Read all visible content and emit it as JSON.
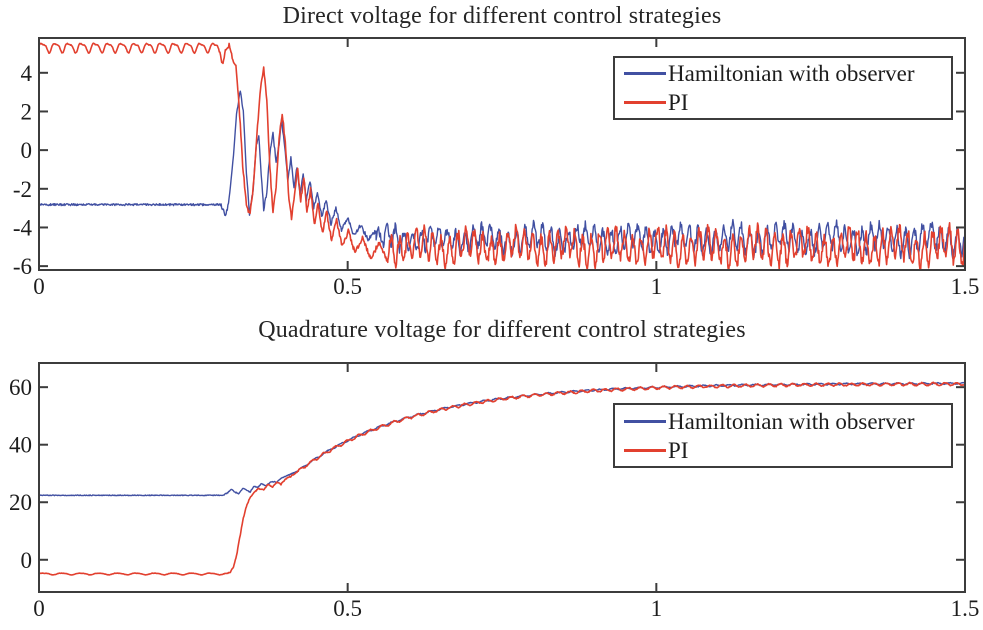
{
  "figure_background": "#ffffff",
  "colors": {
    "hamiltonian_blue": "#4150a2",
    "pi_red": "#e2402f",
    "axis": "#3c3c3c",
    "text": "#1d1d1d"
  },
  "chart_data": [
    {
      "type": "line",
      "title": "Direct voltage for different control strategies",
      "xlabel": "",
      "ylabel": "",
      "xlim": [
        0,
        1.5
      ],
      "ylim": [
        -6.2,
        5.8
      ],
      "xticks": [
        "0",
        "0.5",
        "1",
        "1.5"
      ],
      "xtick_values": [
        0,
        0.5,
        1,
        1.5
      ],
      "yticks": [
        "4",
        "2",
        "0",
        "-2",
        "-4",
        "-6"
      ],
      "ytick_values": [
        4,
        2,
        0,
        -2,
        -4,
        -6
      ],
      "grid": false,
      "legend_position": "inside upper right",
      "series": [
        {
          "name": "Hamiltonian with observer",
          "color": "#4150a2",
          "description": "flat at -2.8 until t=0.30, transient ringing peaking at +3.1 near t=0.33, decays into noisy band centered near -4.6",
          "segments": [
            {
              "type": "flat",
              "t": [
                0,
                0.296
              ],
              "value": -2.82,
              "noise": 0.05
            },
            {
              "type": "points",
              "noise": 0.1,
              "pts": [
                [
                  0.296,
                  -2.9
                ],
                [
                  0.302,
                  -3.4
                ],
                [
                  0.307,
                  -2.75
                ],
                [
                  0.313,
                  -1.0
                ],
                [
                  0.32,
                  1.8
                ],
                [
                  0.326,
                  3.1
                ],
                [
                  0.331,
                  2.0
                ],
                [
                  0.336,
                  -1.2
                ],
                [
                  0.341,
                  -3.3
                ],
                [
                  0.347,
                  -2.0
                ],
                [
                  0.352,
                  0.3
                ],
                [
                  0.356,
                  0.7
                ],
                [
                  0.36,
                  -1.2
                ],
                [
                  0.364,
                  -3.1
                ],
                [
                  0.369,
                  -2.2
                ],
                [
                  0.374,
                  -0.2
                ],
                [
                  0.379,
                  0.9
                ],
                [
                  0.384,
                  -0.6
                ],
                [
                  0.389,
                  0.3
                ],
                [
                  0.393,
                  1.6
                ],
                [
                  0.398,
                  0.2
                ],
                [
                  0.403,
                  -1.6
                ],
                [
                  0.408,
                  -0.4
                ],
                [
                  0.413,
                  -1.9
                ],
                [
                  0.418,
                  -0.9
                ],
                [
                  0.423,
                  -2.3
                ],
                [
                  0.428,
                  -1.2
                ],
                [
                  0.433,
                  -2.6
                ],
                [
                  0.439,
                  -1.6
                ],
                [
                  0.445,
                  -3.0
                ],
                [
                  0.451,
                  -2.2
                ],
                [
                  0.458,
                  -3.4
                ],
                [
                  0.465,
                  -2.6
                ],
                [
                  0.473,
                  -3.8
                ],
                [
                  0.481,
                  -3.0
                ],
                [
                  0.49,
                  -4.1
                ],
                [
                  0.5,
                  -3.5
                ],
                [
                  0.51,
                  -4.4
                ],
                [
                  0.521,
                  -3.9
                ],
                [
                  0.533,
                  -4.6
                ],
                [
                  0.546,
                  -4.2
                ]
              ]
            },
            {
              "type": "band",
              "t": [
                0.546,
                1.5
              ],
              "mean": -4.6,
              "a1": 0.5,
              "p1": 0.014,
              "a2": 0.2,
              "p2": 0.08,
              "jitter": 0.25,
              "grow": 0.25
            }
          ]
        },
        {
          "name": "PI",
          "color": "#e2402f",
          "description": "rippled flat near +5.3 until t=0.30, large transient peaking at +4.3 near t=0.36, decays into noisy band centered near -5.0",
          "segments": [
            {
              "type": "ripple",
              "t": [
                0,
                0.291
              ],
              "base": 5.32,
              "amp": 0.22,
              "period": 0.0214,
              "amp2": 0.08,
              "noise": 0.02
            },
            {
              "type": "points",
              "noise": 0.12,
              "pts": [
                [
                  0.291,
                  5.3
                ],
                [
                  0.297,
                  4.45
                ],
                [
                  0.302,
                  5.15
                ],
                [
                  0.308,
                  5.45
                ],
                [
                  0.314,
                  4.7
                ],
                [
                  0.319,
                  4.3
                ],
                [
                  0.324,
                  2.4
                ],
                [
                  0.33,
                  -0.8
                ],
                [
                  0.336,
                  -2.9
                ],
                [
                  0.342,
                  -3.3
                ],
                [
                  0.348,
                  -1.6
                ],
                [
                  0.354,
                  1.2
                ],
                [
                  0.359,
                  3.3
                ],
                [
                  0.364,
                  4.25
                ],
                [
                  0.369,
                  2.6
                ],
                [
                  0.374,
                  -0.9
                ],
                [
                  0.379,
                  -3.2
                ],
                [
                  0.384,
                  -2.0
                ],
                [
                  0.389,
                  0.6
                ],
                [
                  0.394,
                  1.9
                ],
                [
                  0.399,
                  0.4
                ],
                [
                  0.404,
                  -2.2
                ],
                [
                  0.409,
                  -3.6
                ],
                [
                  0.414,
                  -2.3
                ],
                [
                  0.419,
                  -0.9
                ],
                [
                  0.424,
                  -2.6
                ],
                [
                  0.429,
                  -1.4
                ],
                [
                  0.434,
                  -3.3
                ],
                [
                  0.44,
                  -2.0
                ],
                [
                  0.446,
                  -3.9
                ],
                [
                  0.452,
                  -2.8
                ],
                [
                  0.459,
                  -4.3
                ],
                [
                  0.466,
                  -3.2
                ],
                [
                  0.474,
                  -4.7
                ],
                [
                  0.482,
                  -3.6
                ],
                [
                  0.491,
                  -5.0
                ],
                [
                  0.501,
                  -4.2
                ],
                [
                  0.512,
                  -5.3
                ],
                [
                  0.524,
                  -4.5
                ],
                [
                  0.537,
                  -5.6
                ],
                [
                  0.551,
                  -4.8
                ],
                [
                  0.565,
                  -5.8
                ]
              ]
            },
            {
              "type": "band",
              "t": [
                0.565,
                1.5
              ],
              "mean": -5.0,
              "a1": 0.65,
              "p1": 0.0135,
              "a2": 0.25,
              "p2": 0.077,
              "jitter": 0.3,
              "grow": 0.2
            }
          ]
        }
      ]
    },
    {
      "type": "line",
      "title": "Quadrature voltage for different control strategies",
      "xlabel": "",
      "ylabel": "",
      "xlim": [
        0,
        1.5
      ],
      "ylim": [
        -11.2,
        68.4
      ],
      "xticks": [
        "0",
        "0.5",
        "1",
        "1.5"
      ],
      "xtick_values": [
        0,
        0.5,
        1,
        1.5
      ],
      "yticks": [
        "60",
        "40",
        "20",
        "0"
      ],
      "ytick_values": [
        60,
        40,
        20,
        0
      ],
      "grid": false,
      "legend_position": "inside middle right",
      "series": [
        {
          "name": "Hamiltonian with observer",
          "color": "#4150a2",
          "description": "flat at 22.4 until t=0.30, small wiggles, then exponential rise saturating near 61",
          "segments": [
            {
              "type": "flat",
              "t": [
                0,
                0.298
              ],
              "value": 22.4,
              "noise": 0.12
            },
            {
              "type": "points",
              "noise": 0.18,
              "pts": [
                [
                  0.298,
                  22.4
                ],
                [
                  0.305,
                  23.2
                ],
                [
                  0.312,
                  24.6
                ],
                [
                  0.318,
                  23.4
                ],
                [
                  0.324,
                  23.0
                ],
                [
                  0.33,
                  24.8
                ],
                [
                  0.336,
                  24.2
                ],
                [
                  0.342,
                  23.6
                ],
                [
                  0.348,
                  25.6
                ],
                [
                  0.354,
                  25.0
                ],
                [
                  0.36,
                  26.4
                ],
                [
                  0.368,
                  25.8
                ],
                [
                  0.376,
                  27.2
                ],
                [
                  0.385,
                  27.0
                ],
                [
                  0.394,
                  28.6
                ],
                [
                  0.404,
                  29.4
                ],
                [
                  0.414,
                  30.4
                ],
                [
                  0.42,
                  31.0
                ]
              ]
            },
            {
              "type": "expsat",
              "t": [
                0.42,
                1.5
              ],
              "start": 31,
              "limit": 61.4,
              "tau": 0.19,
              "ripple": 0.25,
              "rp": 0.021,
              "jitter": 0.12
            }
          ]
        },
        {
          "name": "PI",
          "color": "#e2402f",
          "description": "flat at -4.9 until t=0.31, sharp rise to ~25, then exponential rise saturating near 61",
          "segments": [
            {
              "type": "ripple",
              "t": [
                0,
                0.303
              ],
              "base": -4.9,
              "amp": 0.28,
              "period": 0.03,
              "amp2": 0.06,
              "noise": 0.05
            },
            {
              "type": "points",
              "noise": 0.18,
              "pts": [
                [
                  0.303,
                  -4.9
                ],
                [
                  0.31,
                  -4.3
                ],
                [
                  0.315,
                  -2.5
                ],
                [
                  0.32,
                  1.5
                ],
                [
                  0.325,
                  7.5
                ],
                [
                  0.33,
                  13.5
                ],
                [
                  0.335,
                  18.0
                ],
                [
                  0.341,
                  21.2
                ],
                [
                  0.348,
                  23.4
                ],
                [
                  0.356,
                  24.8
                ],
                [
                  0.364,
                  24.2
                ],
                [
                  0.371,
                  26.2
                ],
                [
                  0.378,
                  25.2
                ],
                [
                  0.385,
                  27.0
                ],
                [
                  0.392,
                  26.2
                ],
                [
                  0.4,
                  28.2
                ],
                [
                  0.408,
                  29.0
                ],
                [
                  0.42,
                  30.8
                ]
              ]
            },
            {
              "type": "expsat",
              "t": [
                0.42,
                1.5
              ],
              "start": 30.8,
              "limit": 61.2,
              "tau": 0.19,
              "ripple": 0.45,
              "rp": 0.019,
              "jitter": 0.18
            }
          ]
        }
      ]
    }
  ]
}
